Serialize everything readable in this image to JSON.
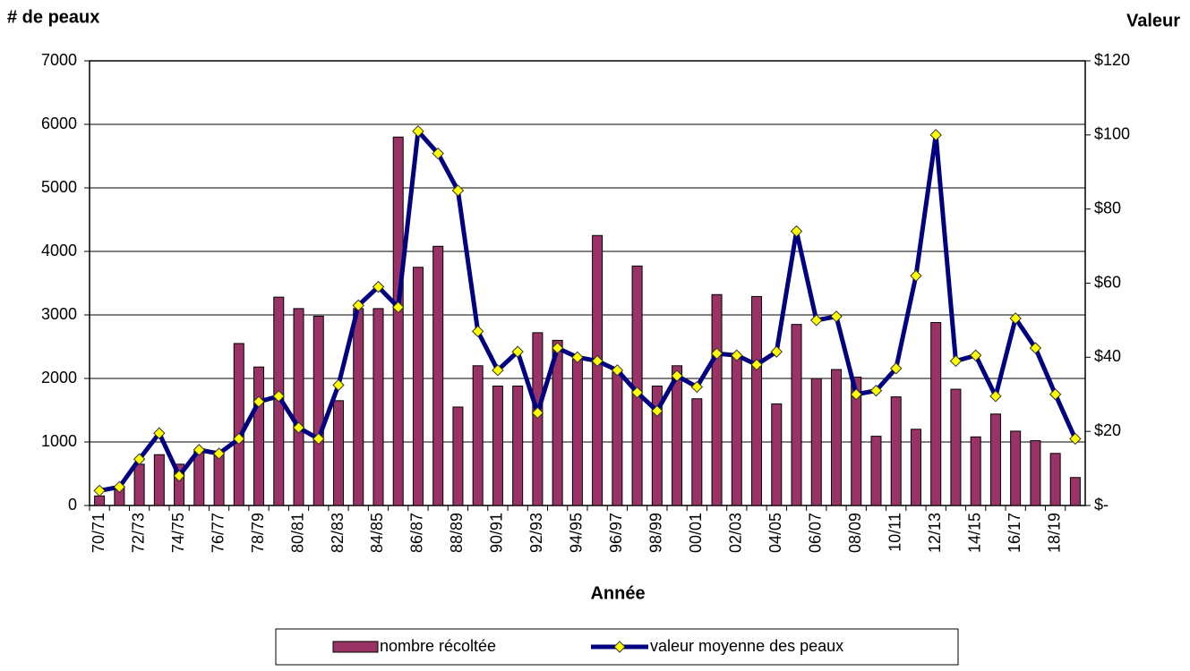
{
  "chart_data": {
    "type": "combo",
    "y_label": "# de peaux",
    "y2_label": "Valeur",
    "x_label": "Année",
    "categories": [
      "70/71",
      null,
      "72/73",
      null,
      "74/75",
      null,
      "76/77",
      null,
      "78/79",
      null,
      "80/81",
      null,
      "82/83",
      null,
      "84/85",
      null,
      "86/87",
      null,
      "88/89",
      null,
      "90/91",
      null,
      "92/93",
      null,
      "94/95",
      null,
      "96/97",
      null,
      "98/99",
      null,
      "00/01",
      null,
      "02/03",
      null,
      "04/05",
      null,
      "06/07",
      null,
      "08/09",
      null,
      "10/11",
      null,
      "12/13",
      null,
      "14/15",
      null,
      "16/17",
      null,
      "18/19",
      null
    ],
    "series": [
      {
        "name": "nombre récoltée",
        "type": "bar",
        "color": "#993366",
        "values": [
          150,
          300,
          650,
          800,
          650,
          850,
          850,
          2550,
          2180,
          3280,
          3100,
          2980,
          1650,
          3100,
          3100,
          5800,
          3750,
          4080,
          1550,
          2200,
          1880,
          1880,
          2720,
          2600,
          2300,
          4250,
          2100,
          3770,
          1880,
          2200,
          1680,
          3320,
          2350,
          3290,
          1600,
          2850,
          2000,
          2140,
          2020,
          1090,
          1710,
          1200,
          2880,
          1830,
          1080,
          1440,
          1170,
          1020,
          820,
          440
        ]
      },
      {
        "name": "valeur moyenne des peaux",
        "type": "line",
        "axis": "y2",
        "color": "#000080",
        "marker_color": "#ffff00",
        "values": [
          4,
          5,
          12.5,
          19.5,
          8,
          15,
          14,
          18,
          28,
          29.5,
          21,
          18,
          32.5,
          54,
          59,
          53.5,
          101,
          95,
          85,
          47,
          36.5,
          41.5,
          25,
          42.5,
          40,
          39,
          36.5,
          30.5,
          25.5,
          35,
          32,
          41,
          40.5,
          38,
          41.5,
          74,
          50,
          51,
          30,
          31,
          37,
          62,
          100,
          39,
          40.5,
          29.5,
          50.5,
          42.5,
          30,
          18
        ]
      }
    ],
    "ylim": [
      0,
      7000
    ],
    "yticks": [
      0,
      1000,
      2000,
      3000,
      4000,
      5000,
      6000,
      7000
    ],
    "y2lim": [
      0,
      120
    ],
    "y2ticks": [
      {
        "value": 0,
        "label": "$-"
      },
      {
        "value": 20,
        "label": "$20"
      },
      {
        "value": 40,
        "label": "$40"
      },
      {
        "value": 60,
        "label": "$60"
      },
      {
        "value": 80,
        "label": "$80"
      },
      {
        "value": 100,
        "label": "$100"
      },
      {
        "value": 120,
        "label": "$120"
      }
    ],
    "grid": true
  }
}
